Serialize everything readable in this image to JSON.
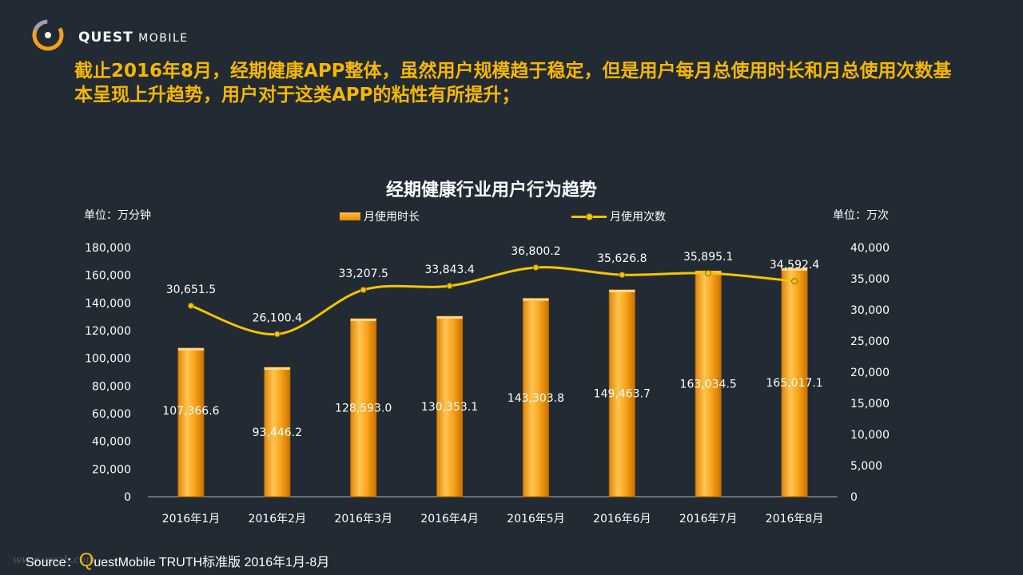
{
  "brand": {
    "name": "QUEST",
    "sub": "MOBILE"
  },
  "headline": "截止2016年8月，经期健康APP整体，虽然用户规模趋于稳定，但是用户每月总使用时长和月总使用次数基本呈现上升趋势，用户对于这类APP的粘性有所提升；",
  "colors": {
    "background": "#222a33",
    "accent": "#f5b800",
    "bar": "#f9a21a",
    "line": "#f5c400"
  },
  "chart_data": {
    "type": "bar",
    "title": "经期健康行业用户行为趋势",
    "left_unit": "单位：万分钟",
    "right_unit": "单位：万次",
    "categories": [
      "2016年1月",
      "2016年2月",
      "2016年3月",
      "2016年4月",
      "2016年5月",
      "2016年6月",
      "2016年7月",
      "2016年8月"
    ],
    "series": [
      {
        "name": "月使用时长",
        "type": "bar",
        "axis": "left",
        "values": [
          107366.6,
          93446.2,
          128593.0,
          130353.1,
          143303.8,
          149463.7,
          163034.5,
          165017.1
        ],
        "labels": [
          "107,366.6",
          "93,446.2",
          "128,593.0",
          "130,353.1",
          "143,303.8",
          "149,463.7",
          "163,034.5",
          "165,017.1"
        ]
      },
      {
        "name": "月使用次数",
        "type": "line",
        "axis": "right",
        "values": [
          30651.5,
          26100.4,
          33207.5,
          33843.4,
          36800.2,
          35626.8,
          35895.1,
          34592.4
        ],
        "labels": [
          "30,651.5",
          "26,100.4",
          "33,207.5",
          "33,843.4",
          "36,800.2",
          "35,626.8",
          "35,895.1",
          "34,592.4"
        ]
      }
    ],
    "y_left": {
      "range": [
        0,
        180000
      ],
      "ticks": [
        "0",
        "20,000",
        "40,000",
        "60,000",
        "80,000",
        "100,000",
        "120,000",
        "140,000",
        "160,000",
        "180,000"
      ]
    },
    "y_right": {
      "range": [
        0,
        40000
      ],
      "ticks": [
        "0",
        "5,000",
        "10,000",
        "15,000",
        "20,000",
        "25,000",
        "30,000",
        "35,000",
        "40,000"
      ]
    },
    "legend_position": "top-center",
    "grid": false
  },
  "source": {
    "prefix": "Source：",
    "q": "Q",
    "rest": "uestMobile TRUTH标准版 2016年1月-8月"
  },
  "watermark": "www.vsszb.com"
}
